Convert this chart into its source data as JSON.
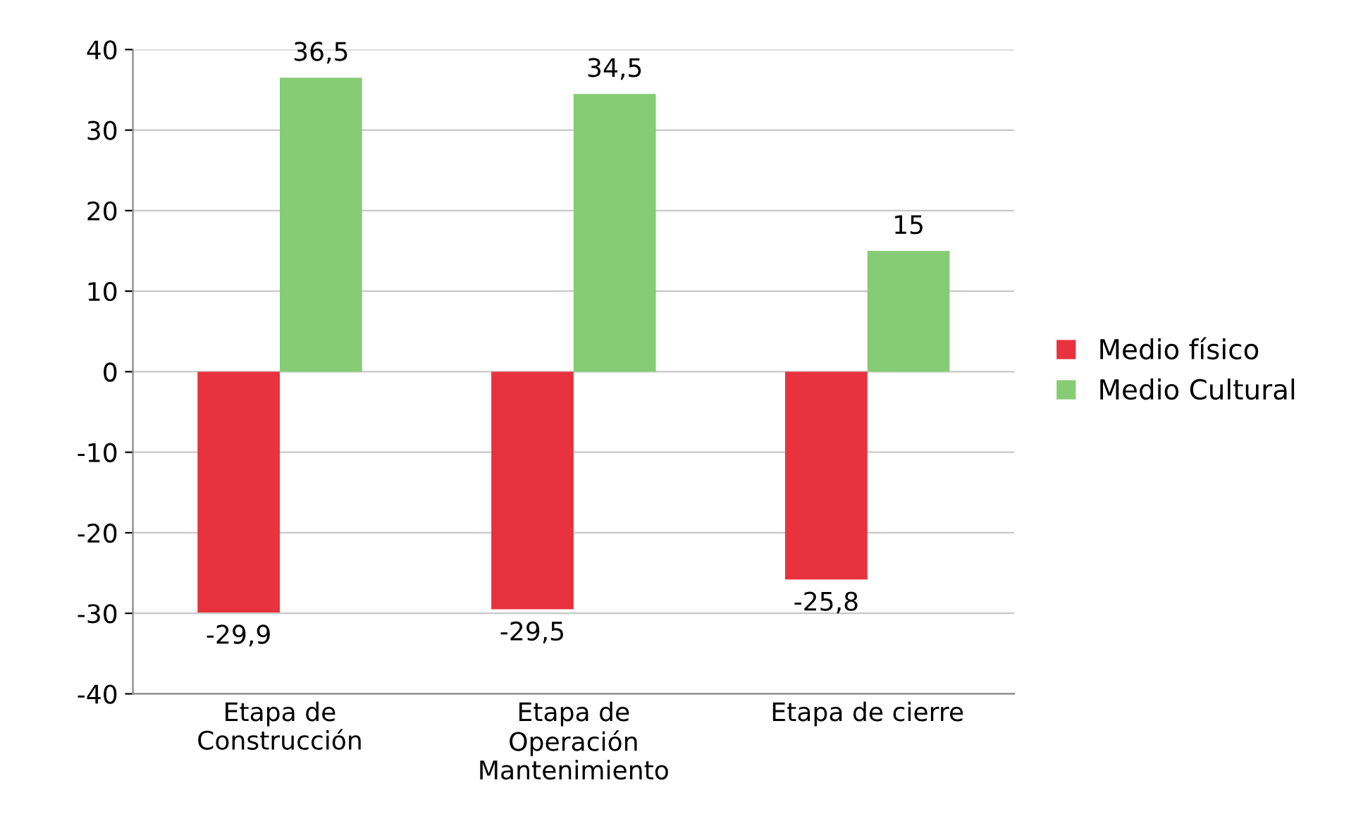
{
  "chart_data": {
    "type": "bar",
    "categories": [
      "Etapa de\nConstrucción",
      "Etapa de\nOperación\nMantenimiento",
      "Etapa de cierre"
    ],
    "series": [
      {
        "name": "Medio físico",
        "color": "#e8323e",
        "values": [
          -29.9,
          -29.5,
          -25.8
        ],
        "value_labels": [
          "-29,9",
          "-29,5",
          "-25,8"
        ]
      },
      {
        "name": "Medio Cultural",
        "color": "#86cc74",
        "values": [
          36.5,
          34.5,
          15
        ],
        "value_labels": [
          "36,5",
          "34,5",
          "15"
        ]
      }
    ],
    "ylim": [
      -40,
      40
    ],
    "yticks": [
      -40,
      -30,
      -20,
      -10,
      0,
      10,
      20,
      30,
      40
    ],
    "grid": "y",
    "legend": "right"
  }
}
